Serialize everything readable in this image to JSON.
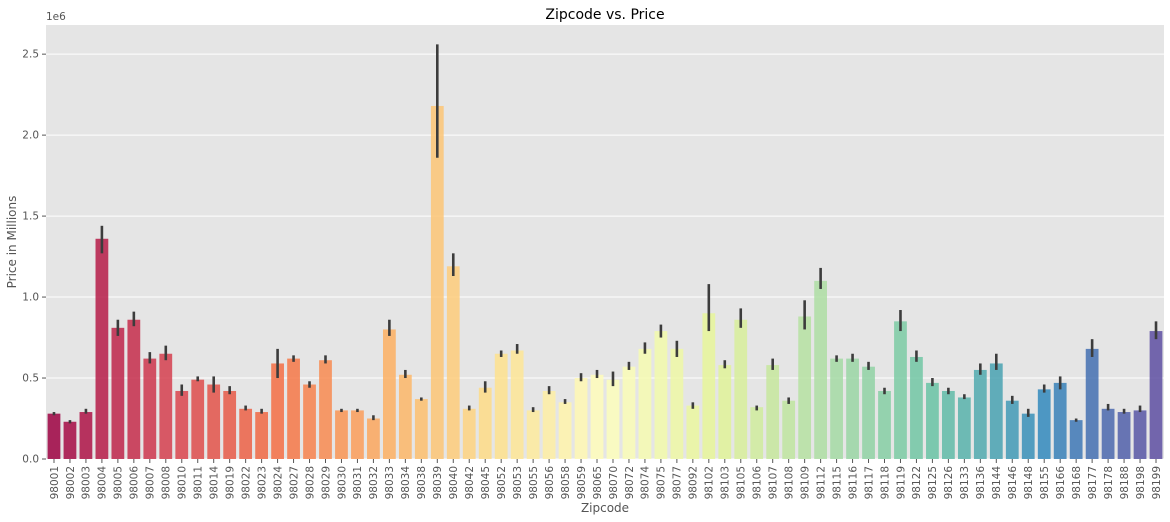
{
  "chart_data": {
    "type": "bar",
    "title": "Zipcode vs. Price",
    "xlabel": "Zipcode",
    "ylabel": "Price in Millions",
    "y_offset_label": "1e6",
    "ylim": [
      0,
      2.68
    ],
    "yticks": [
      "0.0",
      "0.5",
      "1.0",
      "1.5",
      "2.0",
      "2.5"
    ],
    "ytick_values": [
      0,
      0.5,
      1.0,
      1.5,
      2.0,
      2.5
    ],
    "grid": true,
    "legend": "none",
    "palette": "Spectral",
    "background": "#e5e5e5",
    "errorbar_color": "#3c3c3c",
    "categories": [
      "98001",
      "98002",
      "98003",
      "98004",
      "98005",
      "98006",
      "98007",
      "98008",
      "98010",
      "98011",
      "98014",
      "98019",
      "98022",
      "98023",
      "98024",
      "98027",
      "98028",
      "98029",
      "98030",
      "98031",
      "98032",
      "98033",
      "98034",
      "98038",
      "98039",
      "98040",
      "98042",
      "98045",
      "98052",
      "98053",
      "98055",
      "98056",
      "98058",
      "98059",
      "98065",
      "98070",
      "98072",
      "98074",
      "98075",
      "98077",
      "98092",
      "98102",
      "98103",
      "98105",
      "98106",
      "98107",
      "98108",
      "98109",
      "98112",
      "98115",
      "98116",
      "98117",
      "98118",
      "98119",
      "98122",
      "98125",
      "98126",
      "98133",
      "98136",
      "98144",
      "98146",
      "98148",
      "98155",
      "98166",
      "98168",
      "98177",
      "98178",
      "98188",
      "98198",
      "98199"
    ],
    "values": [
      0.28,
      0.23,
      0.29,
      1.36,
      0.81,
      0.86,
      0.62,
      0.65,
      0.42,
      0.49,
      0.46,
      0.42,
      0.31,
      0.29,
      0.59,
      0.62,
      0.46,
      0.61,
      0.3,
      0.3,
      0.25,
      0.8,
      0.52,
      0.37,
      2.18,
      1.19,
      0.31,
      0.44,
      0.65,
      0.67,
      0.3,
      0.42,
      0.35,
      0.5,
      0.52,
      0.49,
      0.57,
      0.68,
      0.79,
      0.68,
      0.33,
      0.9,
      0.58,
      0.86,
      0.32,
      0.58,
      0.36,
      0.88,
      1.1,
      0.62,
      0.62,
      0.57,
      0.42,
      0.85,
      0.63,
      0.47,
      0.42,
      0.38,
      0.55,
      0.59,
      0.36,
      0.28,
      0.43,
      0.47,
      0.24,
      0.68,
      0.31,
      0.29,
      0.3,
      0.79
    ],
    "error_low": [
      0.27,
      0.22,
      0.28,
      1.27,
      0.76,
      0.82,
      0.59,
      0.61,
      0.39,
      0.48,
      0.41,
      0.4,
      0.3,
      0.28,
      0.5,
      0.6,
      0.44,
      0.59,
      0.29,
      0.29,
      0.24,
      0.76,
      0.5,
      0.36,
      1.86,
      1.13,
      0.3,
      0.41,
      0.63,
      0.65,
      0.29,
      0.4,
      0.34,
      0.48,
      0.5,
      0.45,
      0.55,
      0.65,
      0.75,
      0.63,
      0.31,
      0.79,
      0.56,
      0.81,
      0.3,
      0.55,
      0.34,
      0.8,
      1.05,
      0.6,
      0.6,
      0.55,
      0.4,
      0.79,
      0.6,
      0.45,
      0.4,
      0.37,
      0.52,
      0.55,
      0.34,
      0.26,
      0.41,
      0.43,
      0.23,
      0.63,
      0.3,
      0.28,
      0.29,
      0.74
    ],
    "error_high": [
      0.29,
      0.24,
      0.31,
      1.44,
      0.86,
      0.91,
      0.66,
      0.7,
      0.46,
      0.51,
      0.51,
      0.45,
      0.33,
      0.31,
      0.68,
      0.64,
      0.48,
      0.64,
      0.31,
      0.31,
      0.27,
      0.86,
      0.55,
      0.38,
      2.56,
      1.27,
      0.33,
      0.48,
      0.67,
      0.71,
      0.32,
      0.45,
      0.37,
      0.53,
      0.55,
      0.54,
      0.6,
      0.72,
      0.83,
      0.73,
      0.35,
      1.08,
      0.61,
      0.93,
      0.33,
      0.62,
      0.38,
      0.98,
      1.18,
      0.64,
      0.65,
      0.6,
      0.44,
      0.92,
      0.67,
      0.5,
      0.44,
      0.4,
      0.59,
      0.65,
      0.39,
      0.31,
      0.46,
      0.51,
      0.25,
      0.74,
      0.34,
      0.31,
      0.33,
      0.85
    ]
  }
}
